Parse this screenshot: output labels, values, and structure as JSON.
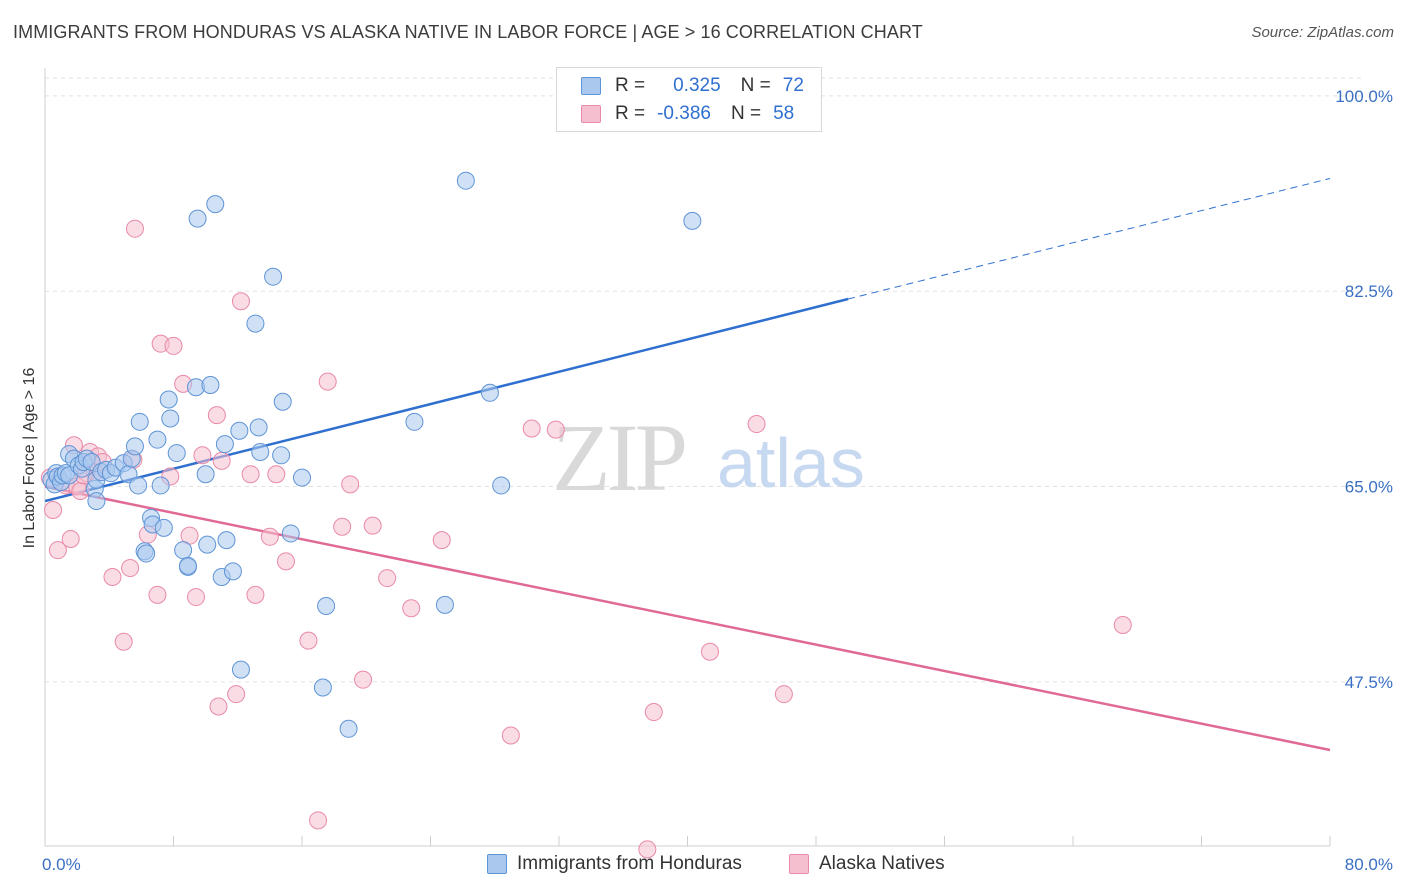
{
  "header": {
    "title": "IMMIGRANTS FROM HONDURAS VS ALASKA NATIVE IN LABOR FORCE | AGE > 16 CORRELATION CHART",
    "source": "Source: ZipAtlas.com"
  },
  "watermark": {
    "zip": "ZIP",
    "atlas": "atlas"
  },
  "legend": {
    "rows": [
      {
        "r_label": "R =",
        "r_value": "0.325",
        "n_label": "N =",
        "n_value": "72"
      },
      {
        "r_label": "R =",
        "r_value": "-0.386",
        "n_label": "N =",
        "n_value": "58"
      }
    ]
  },
  "bottom_legend": {
    "series1": "Immigrants from Honduras",
    "series2": "Alaska Natives"
  },
  "colors": {
    "blue_fill": "#aac8ee",
    "blue_stroke": "#5f94d6",
    "blue_line": "#2f6fcf",
    "pink_fill": "#f6bfd0",
    "pink_stroke": "#e98aa8",
    "pink_line": "#e06a95",
    "tick_text": "#3a6fc4"
  },
  "chart_data": {
    "type": "scatter",
    "title": "IMMIGRANTS FROM HONDURAS VS ALASKA NATIVE IN LABOR FORCE | AGE > 16 CORRELATION CHART",
    "xlabel": "",
    "ylabel": "In Labor Force | Age > 16",
    "xlim": [
      0,
      80
    ],
    "ylim": [
      32.8,
      101.6
    ],
    "x_tick_labels": [
      "0.0%",
      "80.0%"
    ],
    "y_ticks": [
      47.5,
      65.0,
      82.5,
      100.0
    ],
    "y_tick_labels": [
      "47.5%",
      "65.0%",
      "82.5%",
      "100.0%"
    ],
    "grid": "dashed horizontal",
    "legend_placement": "top-center",
    "series": [
      {
        "name": "Immigrants from Honduras",
        "r": 0.325,
        "n": 72,
        "trend": {
          "x0": 0,
          "y0": 63.7,
          "x1": 50,
          "y1": 81.8,
          "extend_to_x": 80,
          "extend_y": 92.6
        },
        "points": [
          [
            0.4,
            65.6
          ],
          [
            0.6,
            65.2
          ],
          [
            0.7,
            66.2
          ],
          [
            0.8,
            65.9
          ],
          [
            1.0,
            65.4
          ],
          [
            1.1,
            66.0
          ],
          [
            1.3,
            66.2
          ],
          [
            1.5,
            66.0
          ],
          [
            1.5,
            67.9
          ],
          [
            1.8,
            67.5
          ],
          [
            2.1,
            66.9
          ],
          [
            2.3,
            66.6
          ],
          [
            2.4,
            67.2
          ],
          [
            2.6,
            67.5
          ],
          [
            2.9,
            67.2
          ],
          [
            3.1,
            64.8
          ],
          [
            3.2,
            65.6
          ],
          [
            3.2,
            63.7
          ],
          [
            3.5,
            66.3
          ],
          [
            3.8,
            66.5
          ],
          [
            4.1,
            66.2
          ],
          [
            4.4,
            66.7
          ],
          [
            4.9,
            67.1
          ],
          [
            5.2,
            66.1
          ],
          [
            5.4,
            67.5
          ],
          [
            5.6,
            68.6
          ],
          [
            5.8,
            65.1
          ],
          [
            5.9,
            70.8
          ],
          [
            6.2,
            59.2
          ],
          [
            6.3,
            59.0
          ],
          [
            6.6,
            62.2
          ],
          [
            6.7,
            61.6
          ],
          [
            7.0,
            69.2
          ],
          [
            7.2,
            65.1
          ],
          [
            7.4,
            61.3
          ],
          [
            7.7,
            72.8
          ],
          [
            7.8,
            71.1
          ],
          [
            8.2,
            68.0
          ],
          [
            8.6,
            59.3
          ],
          [
            8.9,
            57.8
          ],
          [
            8.9,
            57.9
          ],
          [
            9.4,
            73.9
          ],
          [
            9.5,
            89.0
          ],
          [
            10.0,
            66.1
          ],
          [
            10.1,
            59.8
          ],
          [
            10.3,
            74.1
          ],
          [
            10.6,
            90.3
          ],
          [
            11.0,
            56.9
          ],
          [
            11.2,
            68.8
          ],
          [
            11.3,
            60.2
          ],
          [
            11.7,
            57.4
          ],
          [
            12.1,
            70.0
          ],
          [
            12.2,
            48.6
          ],
          [
            13.1,
            79.6
          ],
          [
            13.3,
            70.3
          ],
          [
            13.4,
            68.1
          ],
          [
            14.2,
            83.8
          ],
          [
            14.7,
            67.8
          ],
          [
            14.8,
            72.6
          ],
          [
            15.3,
            60.8
          ],
          [
            16.0,
            65.8
          ],
          [
            17.3,
            47.0
          ],
          [
            17.5,
            54.3
          ],
          [
            18.9,
            43.3
          ],
          [
            24.9,
            54.4
          ],
          [
            23.0,
            70.8
          ],
          [
            26.2,
            92.4
          ],
          [
            27.7,
            73.4
          ],
          [
            28.4,
            65.1
          ],
          [
            40.3,
            88.8
          ],
          [
            42.0,
            100.4
          ],
          [
            43.5,
            101.0
          ]
        ]
      },
      {
        "name": "Alaska Natives",
        "r": -0.386,
        "n": 58,
        "trend": {
          "x0": 0,
          "y0": 65.0,
          "x1": 80,
          "y1": 41.4
        },
        "points": [
          [
            0.3,
            65.8
          ],
          [
            0.5,
            62.9
          ],
          [
            0.8,
            59.3
          ],
          [
            1.3,
            65.1
          ],
          [
            1.6,
            60.3
          ],
          [
            1.8,
            68.7
          ],
          [
            2.0,
            65.0
          ],
          [
            2.2,
            64.6
          ],
          [
            2.6,
            66.2
          ],
          [
            2.8,
            68.1
          ],
          [
            3.1,
            66.3
          ],
          [
            3.3,
            67.7
          ],
          [
            3.6,
            67.2
          ],
          [
            4.2,
            56.9
          ],
          [
            4.9,
            51.1
          ],
          [
            5.3,
            57.7
          ],
          [
            5.5,
            67.4
          ],
          [
            5.6,
            88.1
          ],
          [
            6.4,
            60.7
          ],
          [
            7.0,
            55.3
          ],
          [
            7.2,
            77.8
          ],
          [
            7.8,
            65.9
          ],
          [
            8.0,
            77.6
          ],
          [
            8.6,
            74.2
          ],
          [
            9.0,
            60.6
          ],
          [
            9.4,
            55.1
          ],
          [
            9.8,
            67.8
          ],
          [
            10.7,
            71.4
          ],
          [
            10.8,
            45.3
          ],
          [
            11.0,
            67.3
          ],
          [
            11.9,
            46.4
          ],
          [
            12.2,
            81.6
          ],
          [
            12.8,
            66.1
          ],
          [
            13.1,
            55.3
          ],
          [
            14.0,
            60.5
          ],
          [
            14.4,
            66.1
          ],
          [
            15.0,
            58.3
          ],
          [
            16.4,
            51.2
          ],
          [
            17.0,
            35.1
          ],
          [
            17.6,
            74.4
          ],
          [
            18.5,
            61.4
          ],
          [
            19.0,
            65.2
          ],
          [
            19.8,
            47.7
          ],
          [
            20.4,
            61.5
          ],
          [
            21.3,
            56.8
          ],
          [
            22.8,
            54.1
          ],
          [
            24.7,
            60.2
          ],
          [
            29.0,
            42.7
          ],
          [
            30.3,
            70.2
          ],
          [
            31.8,
            70.1
          ],
          [
            37.5,
            32.5
          ],
          [
            37.9,
            44.8
          ],
          [
            41.4,
            50.2
          ],
          [
            44.3,
            70.6
          ],
          [
            46.0,
            46.4
          ],
          [
            67.1,
            52.6
          ],
          [
            2.4,
            66.0
          ],
          [
            1.0,
            65.4
          ]
        ]
      }
    ]
  }
}
